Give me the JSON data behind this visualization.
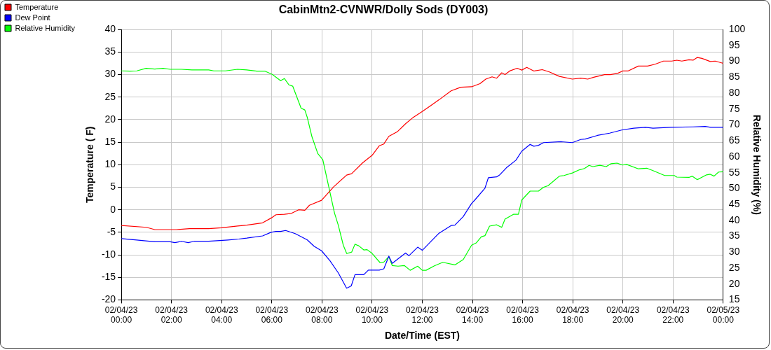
{
  "chart_data": {
    "type": "line",
    "title": "CabinMtn2-CVNWR/Dolly Sods (DY003)",
    "xlabel": "Date/Time (EST)",
    "ylabel": "Temperature ( F)",
    "y2label": "Relative Humidity (%)",
    "xlim": [
      "--02-04T00:00",
      "--02-05T00:00"
    ],
    "xticks": [
      {
        "value": "--02-04T00:00",
        "label": "02/04/23\n00:00"
      },
      {
        "value": "--02-04T02:00",
        "label": "02/04/23\n02:00"
      },
      {
        "value": "--02-04T04:00",
        "label": "02/04/23\n04:00"
      },
      {
        "value": "--02-04T06:00",
        "label": "02/04/23\n06:00"
      },
      {
        "value": "--02-04T08:00",
        "label": "02/04/23\n08:00"
      },
      {
        "value": "--02-04T10:00",
        "label": "02/04/23\n10:00"
      },
      {
        "value": "--02-04T12:00",
        "label": "02/04/23\n12:00"
      },
      {
        "value": "--02-04T14:00",
        "label": "02/04/23\n14:00"
      },
      {
        "value": "--02-04T16:00",
        "label": "02/04/23\n16:00"
      },
      {
        "value": "--02-04T18:00",
        "label": "02/04/23\n18:00"
      },
      {
        "value": "--02-04T20:00",
        "label": "02/04/23\n20:00"
      },
      {
        "value": "--02-04T22:00",
        "label": "02/04/23\n22:00"
      },
      {
        "value": "--02-05T00:00",
        "label": "02/05/23\n00:00"
      }
    ],
    "ylim": [
      -20,
      40
    ],
    "yticks": [
      -20,
      -15,
      -10,
      -5,
      0,
      5,
      10,
      15,
      20,
      25,
      30,
      35,
      40
    ],
    "y2lim": [
      15,
      100
    ],
    "y2ticks": [
      15,
      20,
      25,
      30,
      35,
      40,
      45,
      50,
      55,
      60,
      65,
      70,
      75,
      80,
      85,
      90,
      95,
      100
    ],
    "grid": true,
    "legend": "top left",
    "marker": "none",
    "line_style": "solid",
    "series": [
      {
        "name": "Temperature",
        "color": "#ff0000",
        "x": [
          "--02-04T00:00",
          "--02-04T01:00",
          "--02-04T01:20",
          "--02-04T01:52",
          "--02-04T02:12",
          "--02-04T02:43",
          "--02-04T03:29",
          "--02-04T04:00",
          "--02-04T04:38",
          "--02-04T05:00",
          "--02-04T05:38",
          "--02-04T06:01",
          "--02-04T06:10",
          "--02-04T06:30",
          "--02-04T06:47",
          "--02-04T07:04",
          "--02-04T07:19",
          "--02-04T07:30",
          "--02-04T07:59",
          "--02-04T08:28",
          "--02-04T08:59",
          "--02-04T09:11",
          "--02-04T09:37",
          "--02-04T10:00",
          "--02-04T10:17",
          "--02-04T10:28",
          "--02-04T10:40",
          "--02-04T11:00",
          "--02-04T11:20",
          "--02-04T11:37",
          "--02-04T12:00",
          "--02-04T12:20",
          "--02-04T12:40",
          "--02-04T13:09",
          "--02-04T13:32",
          "--02-04T13:58",
          "--02-04T14:18",
          "--02-04T14:32",
          "--02-04T14:47",
          "--02-04T14:58",
          "--02-04T15:10",
          "--02-04T15:18",
          "--02-04T15:29",
          "--02-04T15:47",
          "--02-04T15:58",
          "--02-04T16:10",
          "--02-04T16:27",
          "--02-04T16:47",
          "--02-04T17:04",
          "--02-04T17:28",
          "--02-04T17:59",
          "--02-04T18:19",
          "--02-04T18:36",
          "--02-04T18:50",
          "--02-04T19:16",
          "--02-04T19:30",
          "--02-04T19:48",
          "--02-04T19:59",
          "--02-04T20:12",
          "--02-04T20:37",
          "--02-04T20:59",
          "--02-04T21:17",
          "--02-04T21:37",
          "--02-04T21:57",
          "--02-04T22:09",
          "--02-04T22:21",
          "--02-04T22:38",
          "--02-04T22:48",
          "--02-04T22:58",
          "--02-04T23:09",
          "--02-04T23:29",
          "--02-04T23:41",
          "--02-05T00:00"
        ],
        "values": [
          -3.5,
          -3.9,
          -4.4,
          -4.4,
          -4.4,
          -4.2,
          -4.2,
          -4,
          -3.6,
          -3.4,
          -2.9,
          -1.7,
          -1.1,
          -1,
          -0.8,
          0,
          -0.1,
          1,
          2.1,
          5.1,
          7.7,
          8,
          10.4,
          12.1,
          14.2,
          14.6,
          16.3,
          17.3,
          19.1,
          20.4,
          21.8,
          23.1,
          24.4,
          26.4,
          27.2,
          27.3,
          28,
          29,
          29.5,
          29.2,
          30.4,
          30,
          30.8,
          31.4,
          31,
          31.6,
          30.8,
          31.1,
          30.6,
          29.6,
          29,
          29.2,
          29,
          29.4,
          30,
          30,
          30.3,
          30.8,
          30.8,
          31.9,
          31.9,
          32.3,
          33,
          33,
          33.2,
          33,
          33.3,
          33.2,
          33.8,
          33.6,
          32.9,
          33,
          32.5
        ]
      },
      {
        "name": "Dew Point",
        "color": "#0000ff",
        "x": [
          "--02-04T00:00",
          "--02-04T00:37",
          "--02-04T01:20",
          "--02-04T01:57",
          "--02-04T02:08",
          "--02-04T02:24",
          "--02-04T02:40",
          "--02-04T02:54",
          "--02-04T03:29",
          "--02-04T04:15",
          "--02-04T04:41",
          "--02-04T05:00",
          "--02-04T05:38",
          "--02-04T05:58",
          "--02-04T06:10",
          "--02-04T06:21",
          "--02-04T06:33",
          "--02-04T06:56",
          "--02-04T07:13",
          "--02-04T07:25",
          "--02-04T07:41",
          "--02-04T07:59",
          "--02-04T08:19",
          "--02-04T08:39",
          "--02-04T08:59",
          "--02-04T09:10",
          "--02-04T09:19",
          "--02-04T09:40",
          "--02-04T09:51",
          "--02-04T10:17",
          "--02-04T10:28",
          "--02-04T10:40",
          "--02-04T10:48",
          "--02-04T11:20",
          "--02-04T11:28",
          "--02-04T11:49",
          "--02-04T12:00",
          "--02-04T12:20",
          "--02-04T12:40",
          "--02-04T13:09",
          "--02-04T13:18",
          "--02-04T13:38",
          "--02-04T13:58",
          "--02-04T14:06",
          "--02-04T14:30",
          "--02-04T14:38",
          "--02-04T14:58",
          "--02-04T15:06",
          "--02-04T15:21",
          "--02-04T15:44",
          "--02-04T15:58",
          "--02-04T16:18",
          "--02-04T16:27",
          "--02-04T16:38",
          "--02-04T16:50",
          "--02-04T17:33",
          "--02-04T17:59",
          "--02-04T18:19",
          "--02-04T18:30",
          "--02-04T18:59",
          "--02-04T19:28",
          "--02-04T19:57",
          "--02-04T20:26",
          "--02-04T20:54",
          "--02-04T21:12",
          "--02-04T21:54",
          "--02-04T22:48",
          "--02-04T23:17",
          "--02-04T23:30",
          "--02-05T00:00"
        ],
        "values": [
          -6.4,
          -6.7,
          -7.1,
          -7.1,
          -7.3,
          -7,
          -7.3,
          -7,
          -7,
          -6.7,
          -6.5,
          -6.3,
          -5.8,
          -5,
          -4.8,
          -4.8,
          -4.6,
          -5.3,
          -6.1,
          -6.7,
          -8.1,
          -9.1,
          -11.3,
          -14,
          -17.4,
          -16.9,
          -14.4,
          -14.4,
          -13.4,
          -13.4,
          -13.1,
          -10.3,
          -11.9,
          -9.6,
          -10.2,
          -8.3,
          -9,
          -7.1,
          -5.2,
          -3.5,
          -3.4,
          -1.5,
          1.4,
          2.2,
          4.8,
          7.1,
          7.3,
          7.8,
          9.3,
          11,
          13,
          14.5,
          14.1,
          14.3,
          14.9,
          15.1,
          14.9,
          15.6,
          15.7,
          16.5,
          17,
          17.7,
          18.1,
          18.3,
          18.1,
          18.3,
          18.4,
          18.5,
          18.3,
          18.3
        ]
      },
      {
        "name": "Relative Humidity",
        "color": "#00ff00",
        "axis": "y2",
        "x": [
          "--02-04T00:00",
          "--02-04T00:21",
          "--02-04T00:37",
          "--02-04T00:59",
          "--02-04T01:20",
          "--02-04T01:40",
          "--02-04T01:57",
          "--02-04T02:24",
          "--02-04T02:49",
          "--02-04T03:29",
          "--02-04T03:41",
          "--02-04T04:09",
          "--02-04T04:38",
          "--02-04T05:00",
          "--02-04T05:24",
          "--02-04T05:44",
          "--02-04T06:01",
          "--02-04T06:21",
          "--02-04T06:30",
          "--02-04T06:41",
          "--02-04T06:50",
          "--02-04T07:10",
          "--02-04T07:19",
          "--02-04T07:25",
          "--02-04T07:36",
          "--02-04T07:50",
          "--02-04T08:02",
          "--02-04T08:30",
          "--02-04T08:39",
          "--02-04T08:51",
          "--02-04T08:59",
          "--02-04T09:11",
          "--02-04T09:19",
          "--02-04T09:28",
          "--02-04T09:40",
          "--02-04T09:48",
          "--02-04T10:00",
          "--02-04T10:19",
          "--02-04T10:28",
          "--02-04T10:40",
          "--02-04T10:48",
          "--02-04T11:02",
          "--02-04T11:17",
          "--02-04T11:31",
          "--02-04T11:49",
          "--02-04T12:00",
          "--02-04T12:09",
          "--02-04T12:29",
          "--02-04T12:49",
          "--02-04T13:18",
          "--02-04T13:38",
          "--02-04T13:58",
          "--02-04T14:09",
          "--02-04T14:21",
          "--02-04T14:30",
          "--02-04T14:41",
          "--02-04T14:58",
          "--02-04T15:10",
          "--02-04T15:18",
          "--02-04T15:38",
          "--02-04T15:50",
          "--02-04T15:58",
          "--02-04T16:18",
          "--02-04T16:38",
          "--02-04T16:50",
          "--02-04T17:01",
          "--02-04T17:28",
          "--02-04T17:39",
          "--02-04T17:59",
          "--02-04T18:16",
          "--02-04T18:28",
          "--02-04T18:39",
          "--02-04T18:48",
          "--02-04T19:05",
          "--02-04T19:20",
          "--02-04T19:31",
          "--02-04T19:46",
          "--02-04T19:59",
          "--02-04T20:09",
          "--02-04T20:37",
          "--02-04T20:57",
          "--02-04T21:11",
          "--02-04T21:40",
          "--02-04T22:03",
          "--02-04T22:09",
          "--02-04T22:38",
          "--02-04T22:46",
          "--02-04T22:58",
          "--02-04T23:20",
          "--02-04T23:29",
          "--02-04T23:38",
          "--02-04T23:49",
          "--02-05T00:00"
        ],
        "values": [
          87,
          86.9,
          87,
          87.8,
          87.6,
          87.8,
          87.5,
          87.5,
          87.3,
          87.3,
          87,
          87,
          87.5,
          87.3,
          86.9,
          86.9,
          85.9,
          83.9,
          84.6,
          82.6,
          82.2,
          75.3,
          74.7,
          72.3,
          66.3,
          61,
          59.1,
          42.3,
          38.5,
          32.2,
          29.6,
          30,
          32.5,
          32,
          30.7,
          30.8,
          29.6,
          26.7,
          26.9,
          28.6,
          25.8,
          25.6,
          25.8,
          24.3,
          25.6,
          24.3,
          24.3,
          25.7,
          26.8,
          26,
          27.7,
          32.2,
          32.9,
          34.8,
          35.2,
          38.2,
          38.6,
          37.8,
          40.4,
          41.9,
          41.9,
          46.4,
          49.2,
          49.2,
          50.4,
          50.9,
          53.9,
          54.1,
          54.9,
          55.9,
          56.3,
          57.3,
          56.9,
          57.3,
          56.9,
          57.8,
          58,
          57.4,
          57.6,
          56.2,
          56.4,
          55.7,
          54.1,
          54.1,
          53.6,
          53.5,
          53.9,
          52.8,
          54.3,
          54.5,
          53.9,
          55.2,
          55.3
        ]
      }
    ]
  }
}
